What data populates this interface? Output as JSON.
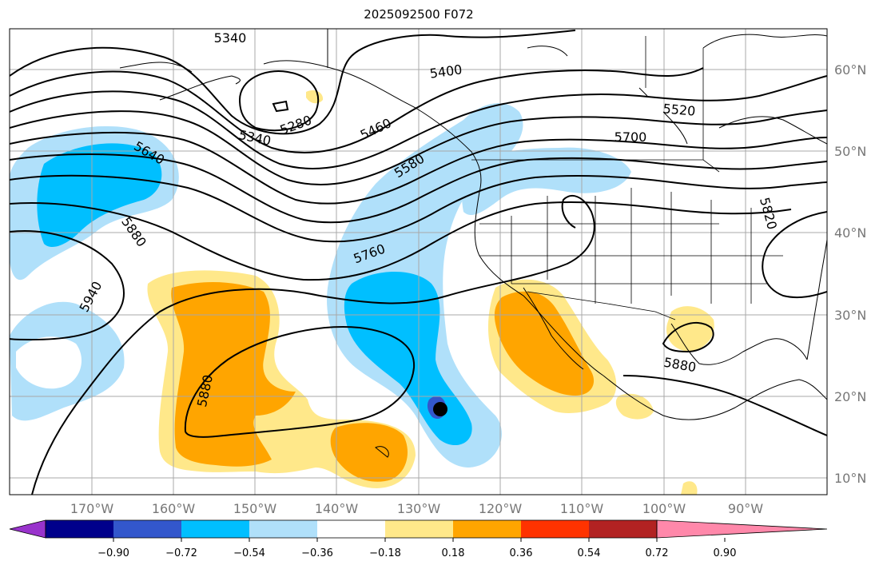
{
  "title": "2025092500 F072",
  "lon_labels": [
    "170°W",
    "160°W",
    "150°W",
    "140°W",
    "130°W",
    "120°W",
    "110°W",
    "100°W",
    "90°W"
  ],
  "lat_labels": [
    "60°N",
    "50°N",
    "40°N",
    "30°N",
    "20°N",
    "10°N"
  ],
  "colorbar": {
    "ticks": [
      "−0.90",
      "−0.72",
      "−0.54",
      "−0.36",
      "−0.18",
      "0.18",
      "0.36",
      "0.54",
      "0.72",
      "0.90"
    ],
    "colors": [
      "#9933cc",
      "#00008b",
      "#3357cc",
      "#00bfff",
      "#b0e0fa",
      "#ffffff",
      "#ffe88a",
      "#ffa500",
      "#ff3300",
      "#b22222",
      "#ff88aa"
    ]
  },
  "contour_labels": [
    "5340",
    "5340",
    "5280",
    "5400",
    "5460",
    "5520",
    "5580",
    "5640",
    "5700",
    "5760",
    "5820",
    "5880",
    "5880",
    "5880",
    "5940"
  ],
  "colors": {
    "ocean_negative_light": "#b0e0fa",
    "ocean_negative": "#00bfff",
    "positive_light": "#ffe88a",
    "positive": "#ffa500",
    "low_center": "#3357cc"
  }
}
